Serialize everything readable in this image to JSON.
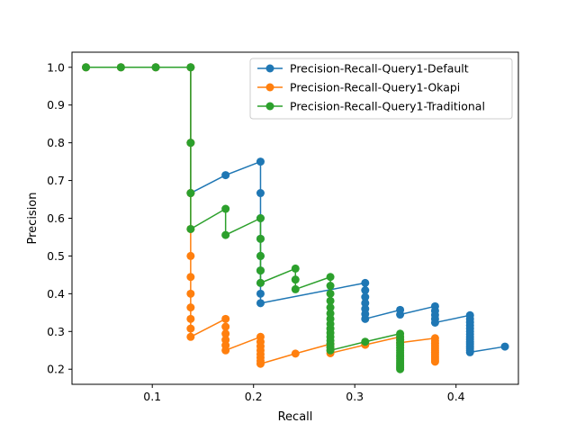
{
  "chart_data": {
    "type": "line",
    "xlabel": "Recall",
    "ylabel": "Precision",
    "xlim": [
      0.0207,
      0.4616
    ],
    "ylim": [
      0.16,
      1.04
    ],
    "xticks": [
      0.1,
      0.2,
      0.3,
      0.4
    ],
    "xtick_labels": [
      "0.1",
      "0.2",
      "0.3",
      "0.4"
    ],
    "yticks": [
      0.2,
      0.3,
      0.4,
      0.5,
      0.6,
      0.7,
      0.8,
      0.9,
      1.0
    ],
    "ytick_labels": [
      "0.2",
      "0.3",
      "0.4",
      "0.5",
      "0.6",
      "0.7",
      "0.8",
      "0.9",
      "1.0"
    ],
    "grid": false,
    "legend_position": "top-right",
    "series": [
      {
        "name": "Precision-Recall-Query1-Default",
        "color": "#1f77b4",
        "points": [
          [
            0.0345,
            1.0
          ],
          [
            0.069,
            1.0
          ],
          [
            0.1034,
            1.0
          ],
          [
            0.1379,
            1.0
          ],
          [
            0.1379,
            0.8
          ],
          [
            0.1379,
            0.6667
          ],
          [
            0.1724,
            0.7143
          ],
          [
            0.2069,
            0.75
          ],
          [
            0.2069,
            0.6667
          ],
          [
            0.2069,
            0.6
          ],
          [
            0.2069,
            0.5455
          ],
          [
            0.2069,
            0.5
          ],
          [
            0.2069,
            0.4615
          ],
          [
            0.2069,
            0.4286
          ],
          [
            0.2069,
            0.4
          ],
          [
            0.2069,
            0.375
          ],
          [
            0.3103,
            0.4286
          ],
          [
            0.3103,
            0.4091
          ],
          [
            0.3103,
            0.3913
          ],
          [
            0.3103,
            0.375
          ],
          [
            0.3103,
            0.36
          ],
          [
            0.3103,
            0.3462
          ],
          [
            0.3103,
            0.3333
          ],
          [
            0.3448,
            0.3571
          ],
          [
            0.3448,
            0.3448
          ],
          [
            0.3793,
            0.3667
          ],
          [
            0.3793,
            0.3548
          ],
          [
            0.3793,
            0.3438
          ],
          [
            0.3793,
            0.3333
          ],
          [
            0.3793,
            0.3235
          ],
          [
            0.4138,
            0.3429
          ],
          [
            0.4138,
            0.3333
          ],
          [
            0.4138,
            0.3243
          ],
          [
            0.4138,
            0.3158
          ],
          [
            0.4138,
            0.3077
          ],
          [
            0.4138,
            0.3
          ],
          [
            0.4138,
            0.2927
          ],
          [
            0.4138,
            0.2857
          ],
          [
            0.4138,
            0.2791
          ],
          [
            0.4138,
            0.2727
          ],
          [
            0.4138,
            0.2667
          ],
          [
            0.4138,
            0.2609
          ],
          [
            0.4138,
            0.2553
          ],
          [
            0.4138,
            0.25
          ],
          [
            0.4138,
            0.2449
          ],
          [
            0.4483,
            0.26
          ]
        ]
      },
      {
        "name": "Precision-Recall-Query1-Okapi",
        "color": "#ff7f0e",
        "points": [
          [
            0.0345,
            1.0
          ],
          [
            0.069,
            1.0
          ],
          [
            0.1034,
            1.0
          ],
          [
            0.1379,
            1.0
          ],
          [
            0.1379,
            0.8
          ],
          [
            0.1379,
            0.6667
          ],
          [
            0.1379,
            0.5714
          ],
          [
            0.1379,
            0.5
          ],
          [
            0.1379,
            0.4444
          ],
          [
            0.1379,
            0.4
          ],
          [
            0.1379,
            0.3636
          ],
          [
            0.1379,
            0.3333
          ],
          [
            0.1379,
            0.3077
          ],
          [
            0.1379,
            0.2857
          ],
          [
            0.1724,
            0.3333
          ],
          [
            0.1724,
            0.3125
          ],
          [
            0.1724,
            0.2941
          ],
          [
            0.1724,
            0.2778
          ],
          [
            0.1724,
            0.2632
          ],
          [
            0.1724,
            0.25
          ],
          [
            0.2069,
            0.2857
          ],
          [
            0.2069,
            0.2727
          ],
          [
            0.2069,
            0.2609
          ],
          [
            0.2069,
            0.25
          ],
          [
            0.2069,
            0.24
          ],
          [
            0.2069,
            0.2308
          ],
          [
            0.2069,
            0.2222
          ],
          [
            0.2069,
            0.2143
          ],
          [
            0.2414,
            0.2414
          ],
          [
            0.2759,
            0.2667
          ],
          [
            0.2759,
            0.2581
          ],
          [
            0.2759,
            0.25
          ],
          [
            0.2759,
            0.2424
          ],
          [
            0.3103,
            0.2647
          ],
          [
            0.3448,
            0.2857
          ],
          [
            0.3448,
            0.2778
          ],
          [
            0.3448,
            0.2703
          ],
          [
            0.3793,
            0.2821
          ],
          [
            0.3793,
            0.275
          ],
          [
            0.3793,
            0.2683
          ],
          [
            0.3793,
            0.2619
          ],
          [
            0.3793,
            0.2558
          ],
          [
            0.3793,
            0.25
          ],
          [
            0.3793,
            0.2444
          ],
          [
            0.3793,
            0.2391
          ],
          [
            0.3793,
            0.234
          ],
          [
            0.3793,
            0.2292
          ],
          [
            0.3793,
            0.2245
          ],
          [
            0.3793,
            0.22
          ]
        ]
      },
      {
        "name": "Precision-Recall-Query1-Traditional",
        "color": "#2ca02c",
        "points": [
          [
            0.0345,
            1.0
          ],
          [
            0.069,
            1.0
          ],
          [
            0.1034,
            1.0
          ],
          [
            0.1379,
            1.0
          ],
          [
            0.1379,
            0.8
          ],
          [
            0.1379,
            0.6667
          ],
          [
            0.1379,
            0.5714
          ],
          [
            0.1724,
            0.625
          ],
          [
            0.1724,
            0.5556
          ],
          [
            0.2069,
            0.6
          ],
          [
            0.2069,
            0.5455
          ],
          [
            0.2069,
            0.5
          ],
          [
            0.2069,
            0.4615
          ],
          [
            0.2069,
            0.4286
          ],
          [
            0.2414,
            0.4667
          ],
          [
            0.2414,
            0.4375
          ],
          [
            0.2414,
            0.4118
          ],
          [
            0.2759,
            0.4444
          ],
          [
            0.2759,
            0.4211
          ],
          [
            0.2759,
            0.4
          ],
          [
            0.2759,
            0.381
          ],
          [
            0.2759,
            0.3636
          ],
          [
            0.2759,
            0.3478
          ],
          [
            0.2759,
            0.3333
          ],
          [
            0.2759,
            0.32
          ],
          [
            0.2759,
            0.3077
          ],
          [
            0.2759,
            0.2963
          ],
          [
            0.2759,
            0.2857
          ],
          [
            0.2759,
            0.2759
          ],
          [
            0.2759,
            0.2667
          ],
          [
            0.2759,
            0.2581
          ],
          [
            0.2759,
            0.25
          ],
          [
            0.3103,
            0.2727
          ],
          [
            0.3448,
            0.2941
          ],
          [
            0.3448,
            0.2857
          ],
          [
            0.3448,
            0.2778
          ],
          [
            0.3448,
            0.2703
          ],
          [
            0.3448,
            0.2632
          ],
          [
            0.3448,
            0.2564
          ],
          [
            0.3448,
            0.25
          ],
          [
            0.3448,
            0.2439
          ],
          [
            0.3448,
            0.2381
          ],
          [
            0.3448,
            0.2326
          ],
          [
            0.3448,
            0.2273
          ],
          [
            0.3448,
            0.2222
          ],
          [
            0.3448,
            0.2174
          ],
          [
            0.3448,
            0.2128
          ],
          [
            0.3448,
            0.2083
          ],
          [
            0.3448,
            0.2041
          ],
          [
            0.3448,
            0.2
          ]
        ]
      }
    ]
  }
}
